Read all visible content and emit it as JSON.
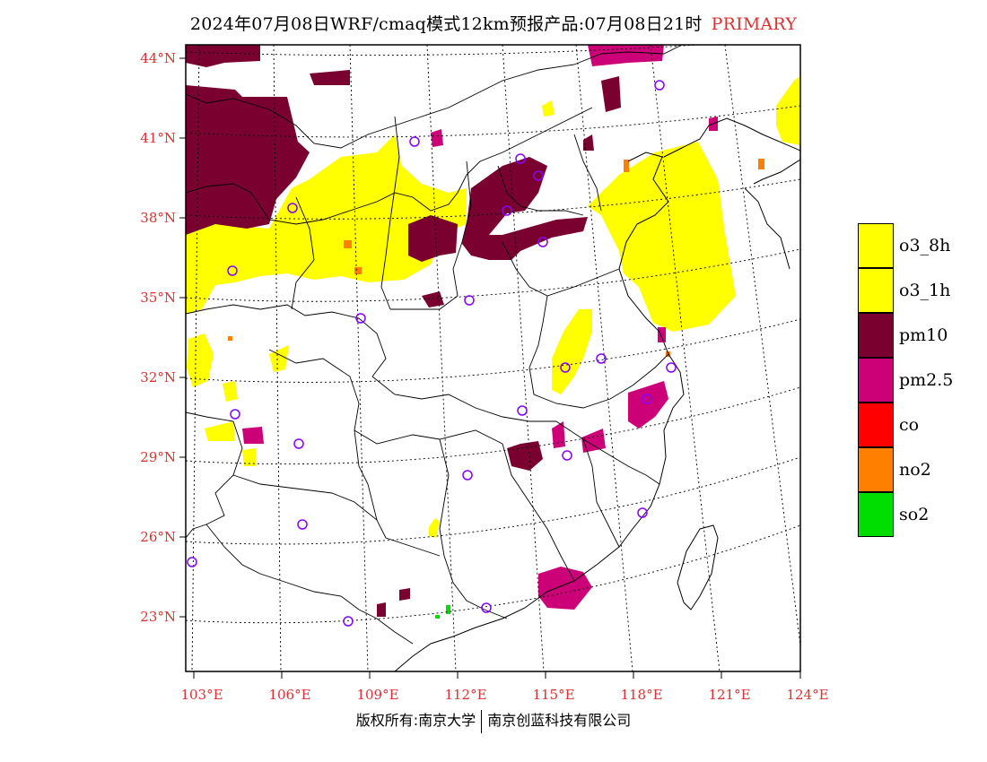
{
  "title": {
    "main": "2024年07月08日WRF/cmaq模式12km预报产品:07月08日21时",
    "tag": "PRIMARY"
  },
  "axes": {
    "lat_ticks": [
      "44°N",
      "41°N",
      "38°N",
      "35°N",
      "32°N",
      "29°N",
      "26°N",
      "23°N"
    ],
    "lon_ticks": [
      "103°E",
      "106°E",
      "109°E",
      "112°E",
      "115°E",
      "118°E",
      "121°E",
      "124°E"
    ]
  },
  "legend": [
    {
      "label": "o3_8h",
      "color": "#ffff00"
    },
    {
      "label": "o3_1h",
      "color": "#ffff00"
    },
    {
      "label": "pm10",
      "color": "#7a0030"
    },
    {
      "label": "pm2.5",
      "color": "#cc0077"
    },
    {
      "label": "co",
      "color": "#ff0000"
    },
    {
      "label": "no2",
      "color": "#ff7f00"
    },
    {
      "label": "so2",
      "color": "#00dd00"
    }
  ],
  "colors": {
    "o3": "#ffff00",
    "pm10": "#7a0030",
    "pm25": "#cc0077",
    "no2": "#ff7f00",
    "so2": "#00dd00",
    "station": "#8800ff",
    "label": "#e03030"
  },
  "copyright": {
    "left": "版权所有:南京大学",
    "right": "南京创蓝科技有限公司"
  }
}
